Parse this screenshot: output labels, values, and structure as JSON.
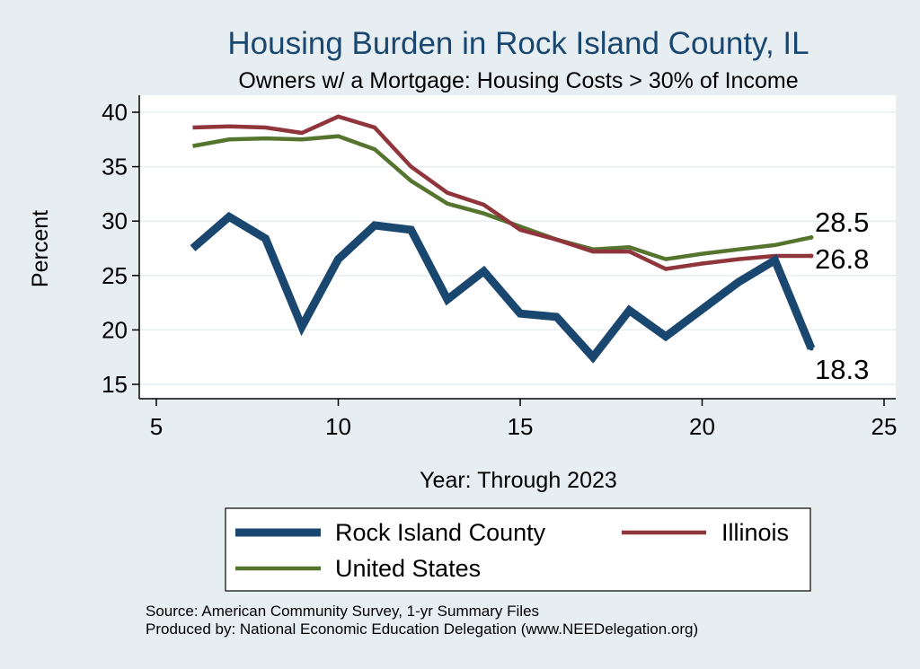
{
  "chart_data": {
    "type": "line",
    "title": "Housing Burden in Rock Island County, IL",
    "subtitle": "Owners w/ a Mortgage: Housing Costs > 30% of Income",
    "xlabel": "Year: Through 2023",
    "ylabel": "Percent",
    "xlim": [
      4.5,
      25.5
    ],
    "ylim": [
      14,
      41
    ],
    "xticks": [
      5,
      10,
      15,
      20,
      25
    ],
    "yticks": [
      15,
      20,
      25,
      30,
      35,
      40
    ],
    "grid": true,
    "x": [
      6,
      7,
      8,
      9,
      10,
      11,
      12,
      13,
      14,
      15,
      16,
      17,
      18,
      19,
      20,
      21,
      22,
      23
    ],
    "series": [
      {
        "name": "Rock Island County",
        "color": "#1a476f",
        "values": [
          27.5,
          30.4,
          28.4,
          20.3,
          26.5,
          29.6,
          29.2,
          22.8,
          25.4,
          21.5,
          21.2,
          17.5,
          21.8,
          19.4,
          21.9,
          24.4,
          26.4,
          18.3
        ],
        "end_label": "18.3"
      },
      {
        "name": "Illinois",
        "color": "#90353b",
        "values": [
          38.6,
          38.7,
          38.6,
          38.1,
          39.6,
          38.6,
          35.0,
          32.6,
          31.5,
          29.2,
          28.3,
          27.2,
          27.2,
          25.6,
          26.1,
          26.5,
          26.8,
          26.8
        ],
        "end_label": "26.8"
      },
      {
        "name": "United States",
        "color": "#55752f",
        "values": [
          36.9,
          37.5,
          37.6,
          37.5,
          37.8,
          36.6,
          33.7,
          31.6,
          30.7,
          29.5,
          28.3,
          27.4,
          27.6,
          26.5,
          27.0,
          27.4,
          27.8,
          28.5
        ],
        "end_label": "28.5"
      }
    ]
  },
  "source": {
    "line1": "Source: American Community Survey, 1-yr Summary Files",
    "line2": "Produced by: National Economic Education Delegation (www.NEEDelegation.org)"
  }
}
